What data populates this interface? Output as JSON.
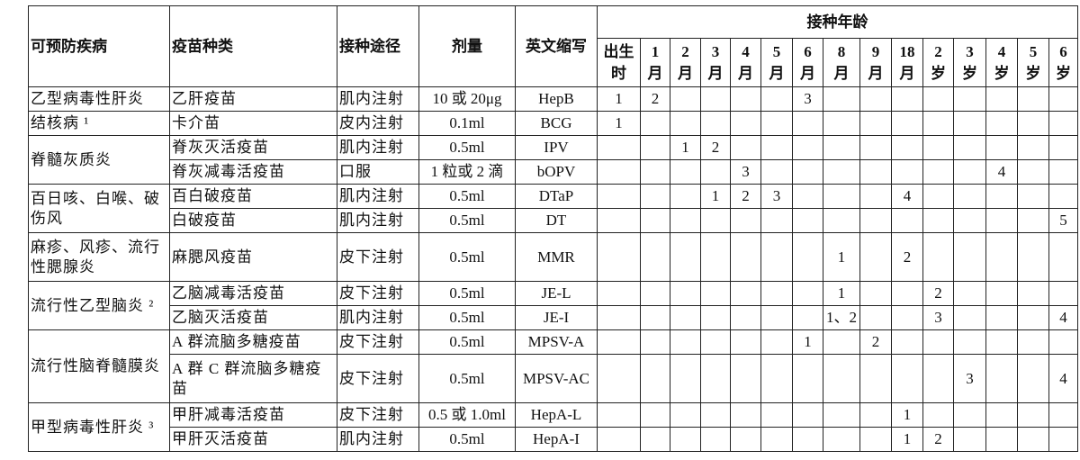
{
  "headers": {
    "disease": "可预防疾病",
    "vaccine": "疫苗种类",
    "route": "接种途径",
    "dose": "剂量",
    "abbr": "英文缩写",
    "age_group": "接种年龄",
    "ages": [
      [
        "出生",
        "时"
      ],
      [
        "1",
        "月"
      ],
      [
        "2",
        "月"
      ],
      [
        "3",
        "月"
      ],
      [
        "4",
        "月"
      ],
      [
        "5",
        "月"
      ],
      [
        "6",
        "月"
      ],
      [
        "8",
        "月"
      ],
      [
        "9",
        "月"
      ],
      [
        "18",
        "月"
      ],
      [
        "2",
        "岁"
      ],
      [
        "3",
        "岁"
      ],
      [
        "4",
        "岁"
      ],
      [
        "5",
        "岁"
      ],
      [
        "6",
        "岁"
      ]
    ]
  },
  "rows": [
    {
      "disease": "乙型病毒性肝炎",
      "span": 1,
      "vaccine": "乙肝疫苗",
      "route": "肌内注射",
      "dose": "10 或 20μg",
      "abbr": "HepB",
      "doses": [
        "1",
        "2",
        "",
        "",
        "",
        "",
        "3",
        "",
        "",
        "",
        "",
        "",
        "",
        "",
        ""
      ]
    },
    {
      "disease": "结核病 ¹",
      "span": 1,
      "vaccine": "卡介苗",
      "route": "皮内注射",
      "dose": "0.1ml",
      "abbr": "BCG",
      "doses": [
        "1",
        "",
        "",
        "",
        "",
        "",
        "",
        "",
        "",
        "",
        "",
        "",
        "",
        "",
        ""
      ]
    },
    {
      "disease": "脊髓灰质炎",
      "span": 2,
      "vaccine": "脊灰灭活疫苗",
      "route": "肌内注射",
      "dose": "0.5ml",
      "abbr": "IPV",
      "doses": [
        "",
        "",
        "1",
        "2",
        "",
        "",
        "",
        "",
        "",
        "",
        "",
        "",
        "",
        "",
        ""
      ]
    },
    {
      "disease": null,
      "vaccine": "脊灰减毒活疫苗",
      "route": "口服",
      "dose": "1 粒或 2 滴",
      "abbr": "bOPV",
      "doses": [
        "",
        "",
        "",
        "",
        "3",
        "",
        "",
        "",
        "",
        "",
        "",
        "",
        "4",
        "",
        ""
      ]
    },
    {
      "disease": "百日咳、白喉、破伤风",
      "span": 2,
      "vaccine": "百白破疫苗",
      "route": "肌内注射",
      "dose": "0.5ml",
      "abbr": "DTaP",
      "doses": [
        "",
        "",
        "",
        "1",
        "2",
        "3",
        "",
        "",
        "",
        "4",
        "",
        "",
        "",
        "",
        ""
      ]
    },
    {
      "disease": null,
      "vaccine": "白破疫苗",
      "route": "肌内注射",
      "dose": "0.5ml",
      "abbr": "DT",
      "doses": [
        "",
        "",
        "",
        "",
        "",
        "",
        "",
        "",
        "",
        "",
        "",
        "",
        "",
        "",
        "5"
      ]
    },
    {
      "disease": "麻疹、风疹、流行性腮腺炎",
      "span": 1,
      "tall": true,
      "vaccine": "麻腮风疫苗",
      "route": "皮下注射",
      "dose": "0.5ml",
      "abbr": "MMR",
      "doses": [
        "",
        "",
        "",
        "",
        "",
        "",
        "",
        "1",
        "",
        "2",
        "",
        "",
        "",
        "",
        ""
      ]
    },
    {
      "disease": "流行性乙型脑炎 ²",
      "span": 2,
      "vaccine": "乙脑减毒活疫苗",
      "route": "皮下注射",
      "dose": "0.5ml",
      "abbr": "JE-L",
      "doses": [
        "",
        "",
        "",
        "",
        "",
        "",
        "",
        "1",
        "",
        "",
        "2",
        "",
        "",
        "",
        ""
      ]
    },
    {
      "disease": null,
      "vaccine": "乙脑灭活疫苗",
      "route": "肌内注射",
      "dose": "0.5ml",
      "abbr": "JE-I",
      "doses": [
        "",
        "",
        "",
        "",
        "",
        "",
        "",
        "1、2",
        "",
        "",
        "3",
        "",
        "",
        "",
        "4"
      ]
    },
    {
      "disease": "流行性脑脊髓膜炎",
      "span": 2,
      "vaccine": "A 群流脑多糖疫苗",
      "route": "皮下注射",
      "dose": "0.5ml",
      "abbr": "MPSV-A",
      "doses": [
        "",
        "",
        "",
        "",
        "",
        "",
        "1",
        "",
        "2",
        "",
        "",
        "",
        "",
        "",
        ""
      ]
    },
    {
      "disease": null,
      "tall": true,
      "vaccine": "A 群 C 群流脑多糖疫苗",
      "route": "皮下注射",
      "dose": "0.5ml",
      "abbr": "MPSV-AC",
      "doses": [
        "",
        "",
        "",
        "",
        "",
        "",
        "",
        "",
        "",
        "",
        "",
        "3",
        "",
        "",
        "4"
      ]
    },
    {
      "disease": "甲型病毒性肝炎 ³",
      "span": 2,
      "vaccine": "甲肝减毒活疫苗",
      "route": "皮下注射",
      "dose": "0.5 或 1.0ml",
      "abbr": "HepA-L",
      "doses": [
        "",
        "",
        "",
        "",
        "",
        "",
        "",
        "",
        "",
        "1",
        "",
        "",
        "",
        "",
        ""
      ]
    },
    {
      "disease": null,
      "vaccine": "甲肝灭活疫苗",
      "route": "肌内注射",
      "dose": "0.5ml",
      "abbr": "HepA-I",
      "doses": [
        "",
        "",
        "",
        "",
        "",
        "",
        "",
        "",
        "",
        "1",
        "2",
        "",
        "",
        "",
        ""
      ]
    }
  ]
}
